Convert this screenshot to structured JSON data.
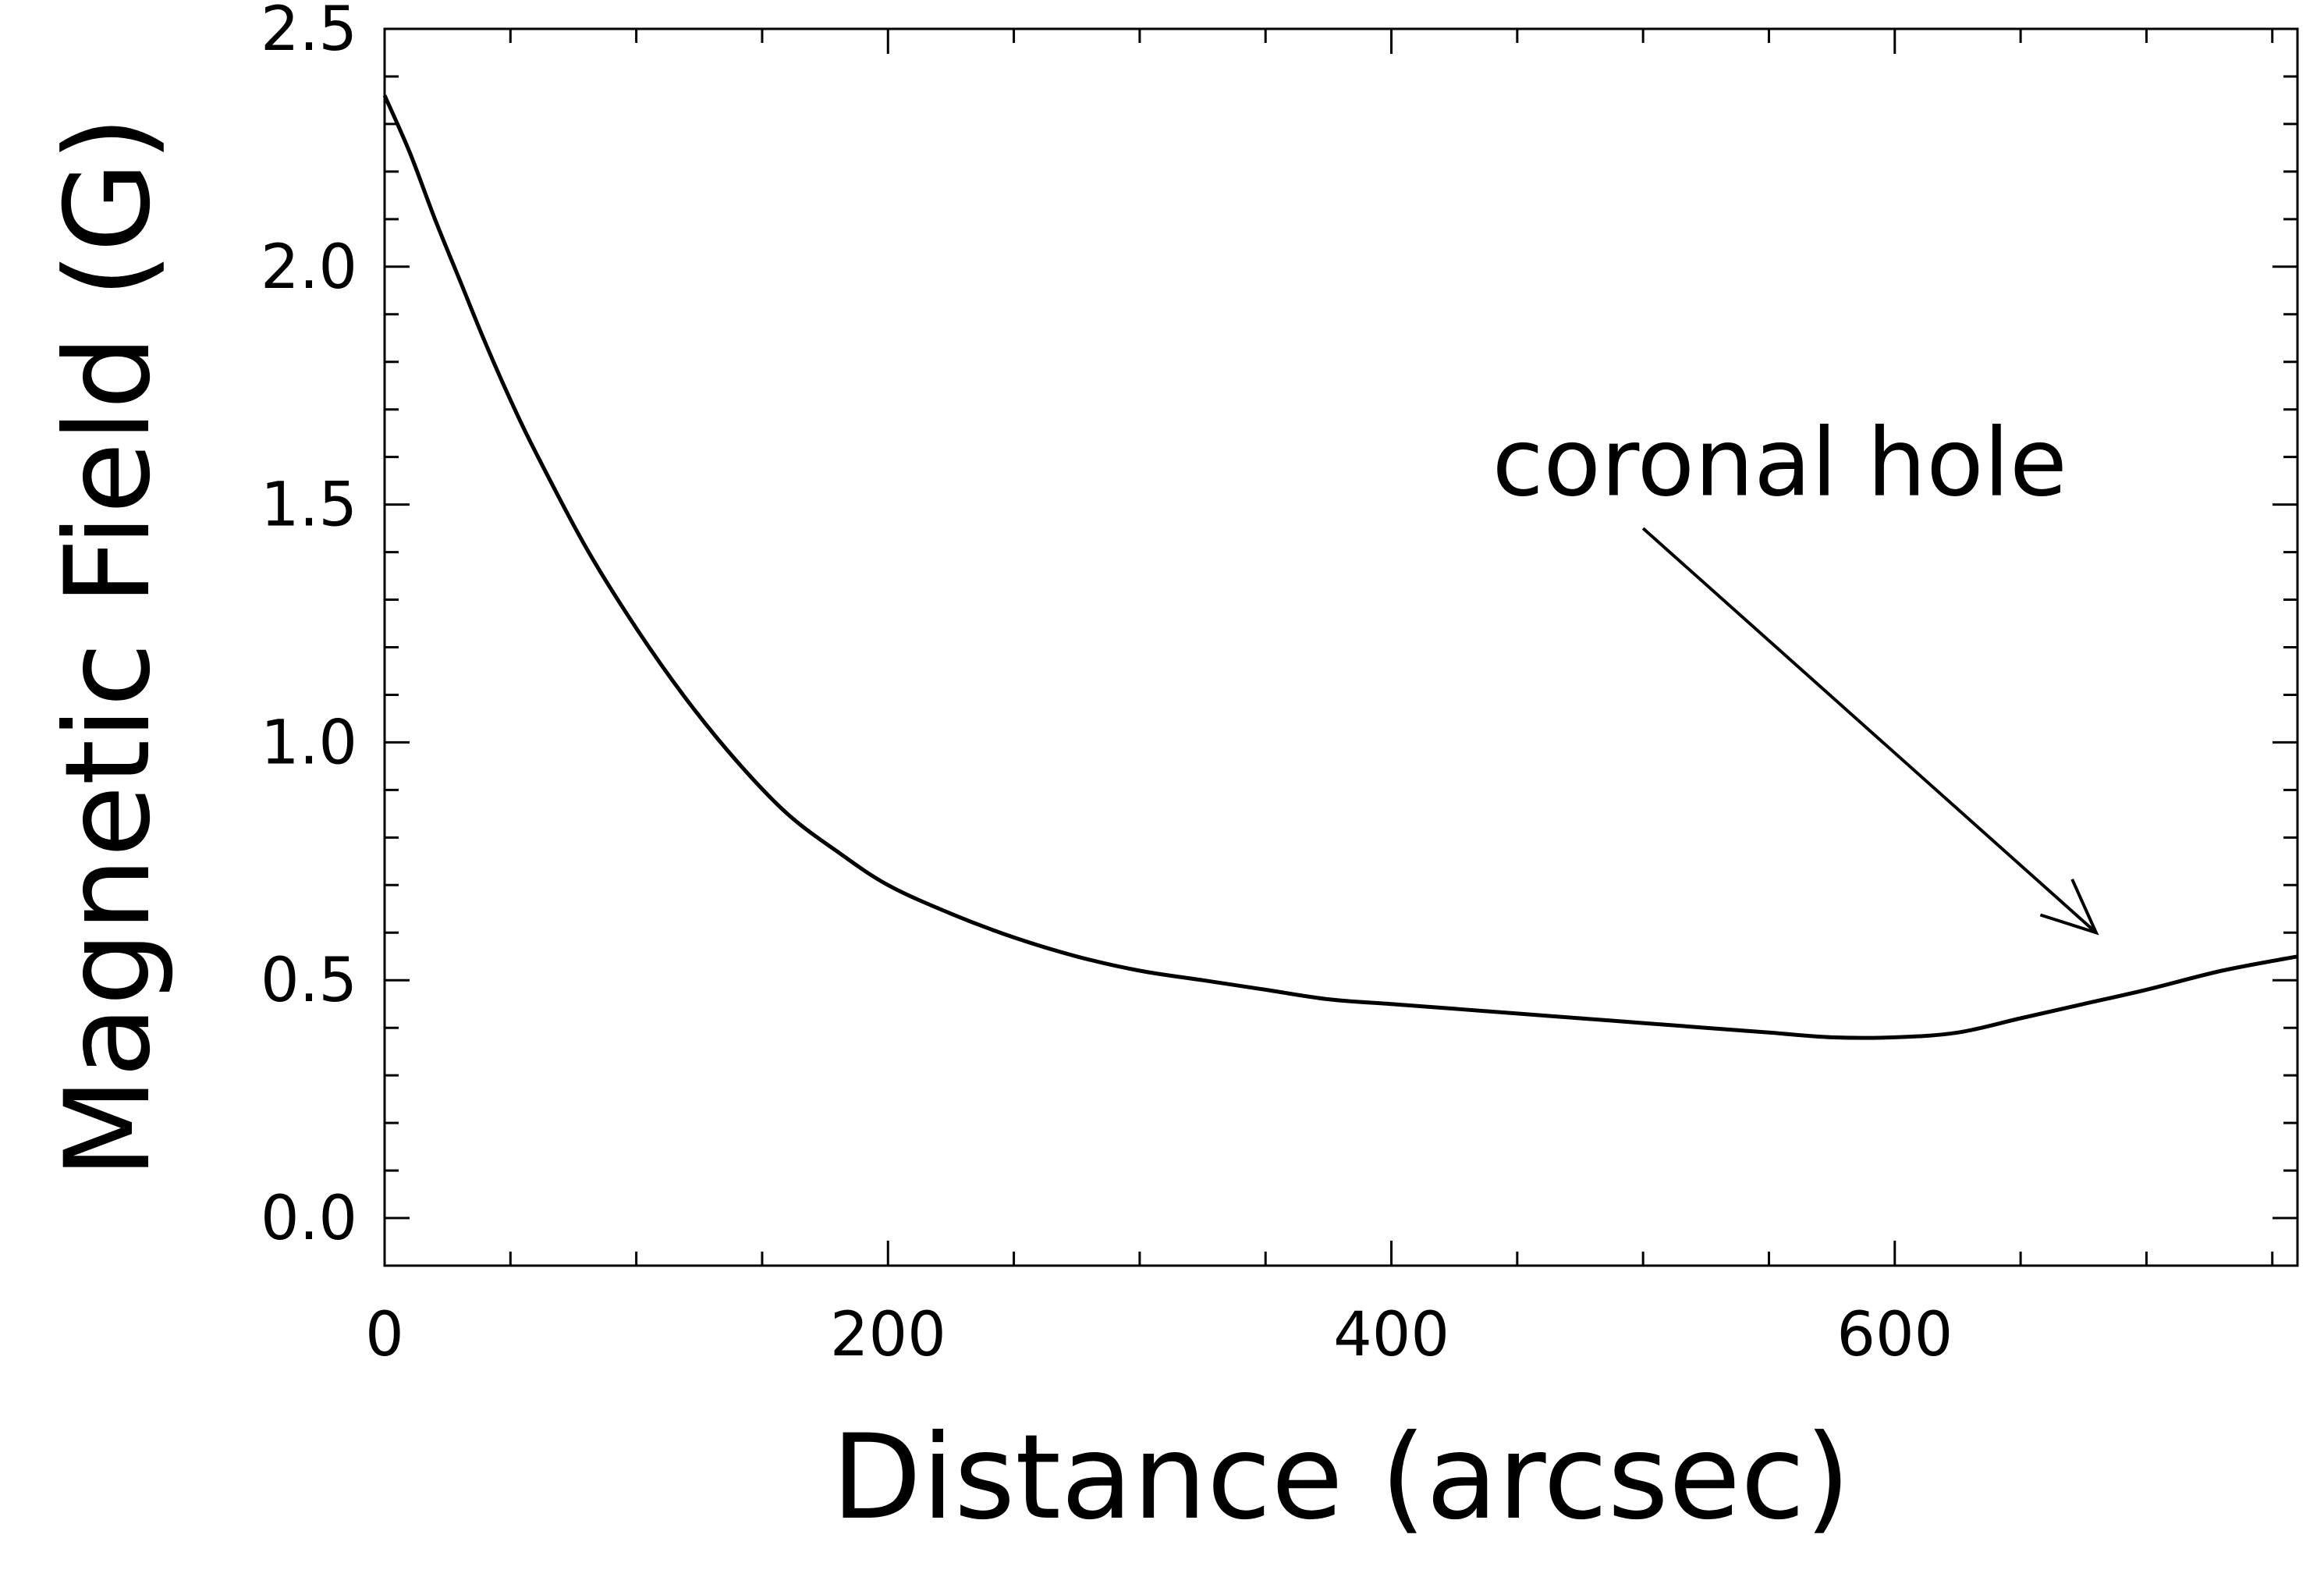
{
  "chart_data": {
    "type": "line",
    "title": "",
    "xlabel": "Distance (arcsec)",
    "ylabel": "Magnetic Field (G)",
    "xlim": [
      0,
      760
    ],
    "ylim": [
      -0.1,
      2.5
    ],
    "x_ticks": [
      0,
      200,
      400,
      600
    ],
    "x_tick_labels": [
      "0",
      "200",
      "400",
      "600"
    ],
    "x_minor_step": 50,
    "y_ticks": [
      0.0,
      0.5,
      1.0,
      1.5,
      2.0,
      2.5
    ],
    "y_tick_labels": [
      "0.0",
      "0.5",
      "1.0",
      "1.5",
      "2.0",
      "2.5"
    ],
    "y_minor_step": 0.1,
    "grid": false,
    "line_color": "#000000",
    "series": [
      {
        "x": [
          0,
          10,
          20,
          30,
          40,
          50,
          60,
          80,
          100,
          120,
          140,
          160,
          180,
          200,
          225,
          250,
          275,
          300,
          325,
          350,
          375,
          400,
          425,
          450,
          475,
          500,
          525,
          550,
          575,
          600,
          625,
          650,
          675,
          700,
          730,
          760
        ],
        "y": [
          2.36,
          2.24,
          2.1,
          1.97,
          1.84,
          1.72,
          1.61,
          1.41,
          1.24,
          1.09,
          0.96,
          0.85,
          0.77,
          0.7,
          0.64,
          0.59,
          0.55,
          0.52,
          0.5,
          0.48,
          0.46,
          0.45,
          0.44,
          0.43,
          0.42,
          0.41,
          0.4,
          0.39,
          0.38,
          0.38,
          0.39,
          0.42,
          0.45,
          0.48,
          0.52,
          0.55
        ]
      }
    ],
    "annotations": [
      {
        "text": "coronal hole",
        "text_at": [
          440,
          1.52
        ],
        "arrow_from": [
          500,
          1.45
        ],
        "arrow_to": [
          680,
          0.6
        ]
      }
    ]
  }
}
